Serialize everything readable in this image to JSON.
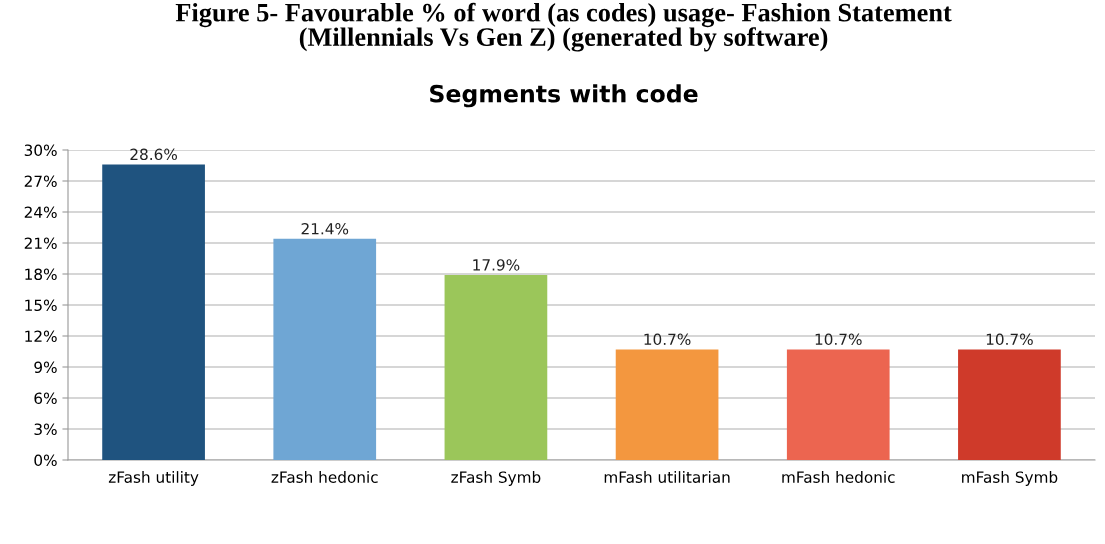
{
  "chart_data": {
    "type": "bar",
    "title": "Figure 5- Favourable % of word (as codes) usage- Fashion Statement\n(Millennials Vs Gen Z) (generated by software)",
    "subtitle": "Segments with code",
    "categories": [
      "zFash utility",
      "zFash hedonic",
      "zFash Symb",
      "mFash utilitarian",
      "mFash hedonic",
      "mFash Symb"
    ],
    "values": [
      28.6,
      21.4,
      17.9,
      10.7,
      10.7,
      10.7
    ],
    "value_labels": [
      "28.6%",
      "21.4%",
      "17.9%",
      "10.7%",
      "10.7%",
      "10.7%"
    ],
    "colors": [
      "#1f537f",
      "#6fa6d4",
      "#9bc65a",
      "#f3973f",
      "#ec6550",
      "#cf3a2a"
    ],
    "ylim": [
      0,
      30
    ],
    "yticks": [
      {
        "value": 0,
        "label": "0%"
      },
      {
        "value": 3,
        "label": "3%"
      },
      {
        "value": 6,
        "label": "6%"
      },
      {
        "value": 9,
        "label": "9%"
      },
      {
        "value": 12,
        "label": "12%"
      },
      {
        "value": 15,
        "label": "15%"
      },
      {
        "value": 18,
        "label": "18%"
      },
      {
        "value": 21,
        "label": "21%"
      },
      {
        "value": 24,
        "label": "24%"
      },
      {
        "value": 27,
        "label": "27%"
      },
      {
        "value": 30,
        "label": "30%"
      }
    ],
    "grid": "y",
    "legend": false
  }
}
